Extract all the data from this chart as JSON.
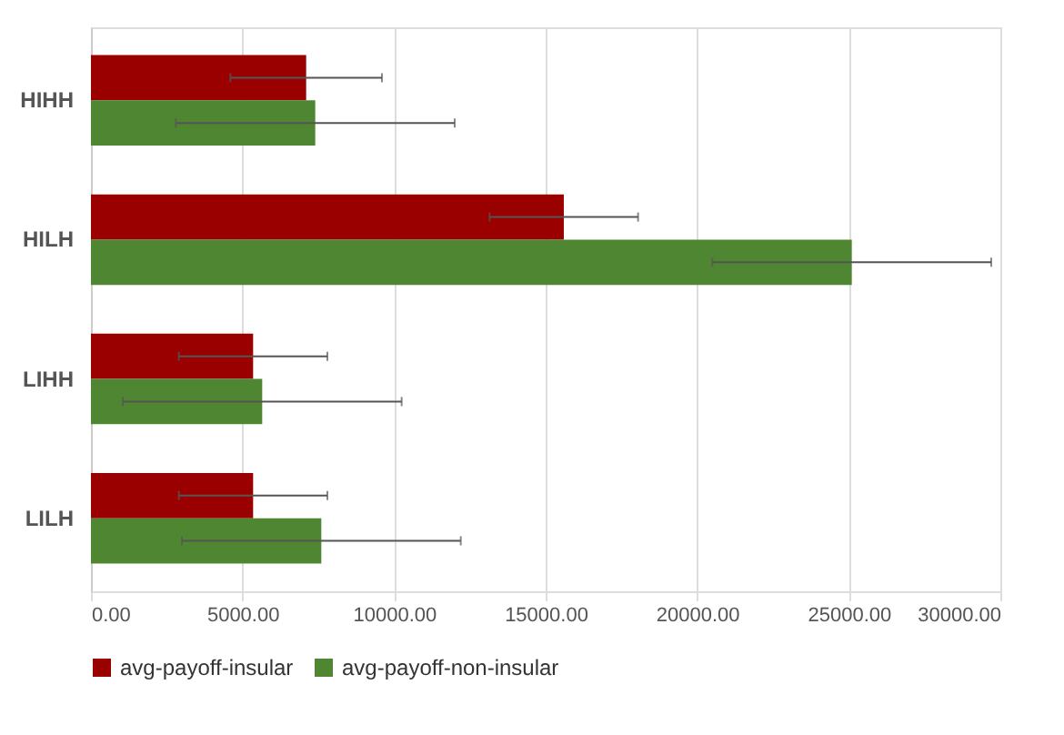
{
  "chart_data": {
    "type": "bar",
    "orientation": "horizontal",
    "categories": [
      "HIHH",
      "HILH",
      "LIHH",
      "LILH"
    ],
    "series": [
      {
        "name": "avg-payoff-insular",
        "color": "#9b0000",
        "values": [
          7100,
          15600,
          5350,
          5350
        ],
        "errors": [
          2500,
          2450,
          2450,
          2450
        ]
      },
      {
        "name": "avg-payoff-non-insular",
        "color": "#4f8631",
        "values": [
          7400,
          25100,
          5650,
          7600
        ],
        "errors": [
          4600,
          4600,
          4600,
          4600
        ]
      }
    ],
    "xlim": [
      0,
      30000
    ],
    "xticks": [
      {
        "value": 0,
        "label": "0.00"
      },
      {
        "value": 5000,
        "label": "5000.00"
      },
      {
        "value": 10000,
        "label": "10000.00"
      },
      {
        "value": 15000,
        "label": "15000.00"
      },
      {
        "value": 20000,
        "label": "20000.00"
      },
      {
        "value": 25000,
        "label": "25000.00"
      },
      {
        "value": 30000,
        "label": "30000.00"
      }
    ],
    "grid": "x",
    "legend": "bottom"
  }
}
